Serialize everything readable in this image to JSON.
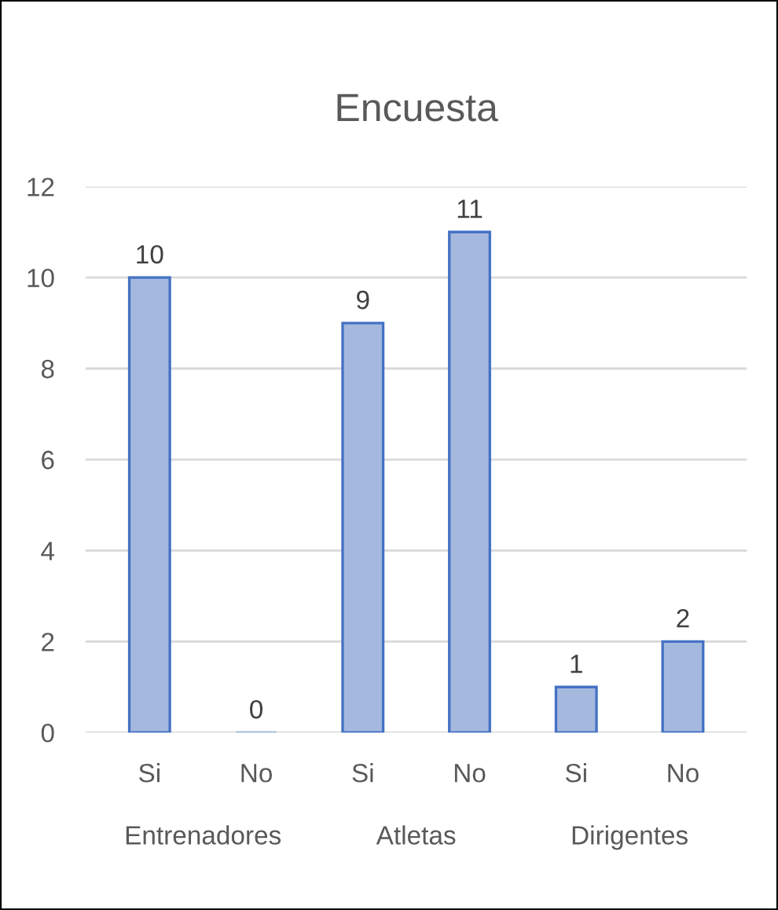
{
  "chart_data": {
    "type": "bar",
    "title": "Encuesta",
    "categories": [
      "Si",
      "No",
      "Si",
      "No",
      "Si",
      "No"
    ],
    "values": [
      10,
      0,
      9,
      11,
      1,
      2
    ],
    "color": "#a5b9de",
    "ylim": [
      0,
      12
    ],
    "yticks": [
      0,
      2,
      4,
      6,
      8,
      10,
      12
    ],
    "grid": "y",
    "data_labels": true,
    "legend": false,
    "annotations": [
      "Entrenadores",
      "Atletas",
      "Dirigentes"
    ]
  }
}
